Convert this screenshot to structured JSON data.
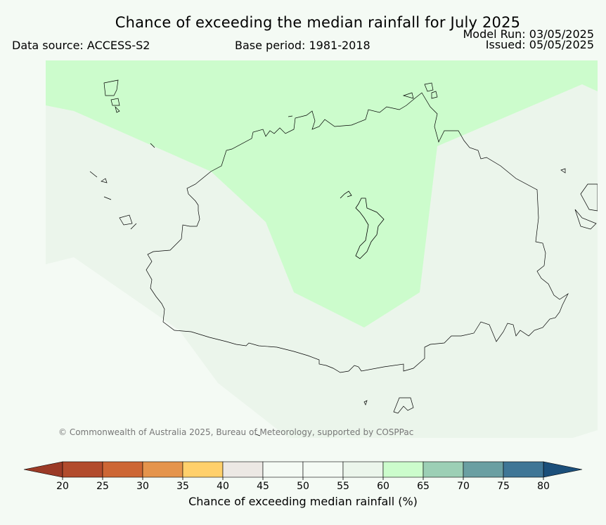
{
  "header": {
    "title": "Chance of exceeding the median rainfall for July 2025",
    "data_source": "Data source: ACCESS-S2",
    "base_period": "Base period: 1981-2018",
    "model_run": "Model Run: 03/05/2025",
    "issued": "Issued: 05/05/2025"
  },
  "map": {
    "copyright": "© Commonwealth of Australia 2025, Bureau of Meteorology, supported by COSPPac",
    "legend_category_colors": {
      "60-65": "#ccfccc",
      "55-60": "#ebf5eb",
      "50-55": "#f4faf4"
    }
  },
  "colorbar": {
    "label": "Chance of exceeding median rainfall (%)",
    "ticks": [
      "20",
      "25",
      "30",
      "35",
      "40",
      "45",
      "50",
      "55",
      "60",
      "65",
      "70",
      "75",
      "80"
    ],
    "below_color": "#9b3a26",
    "above_color": "#1b4f7a",
    "colors": [
      "#b24b2c",
      "#cd6634",
      "#e5944c",
      "#ffd06b",
      "#ece8e4",
      "#f4faf4",
      "#f4faf4",
      "#ebf5eb",
      "#ccfccc",
      "#9ccfb5",
      "#6a9fa2",
      "#3f7696"
    ]
  }
}
